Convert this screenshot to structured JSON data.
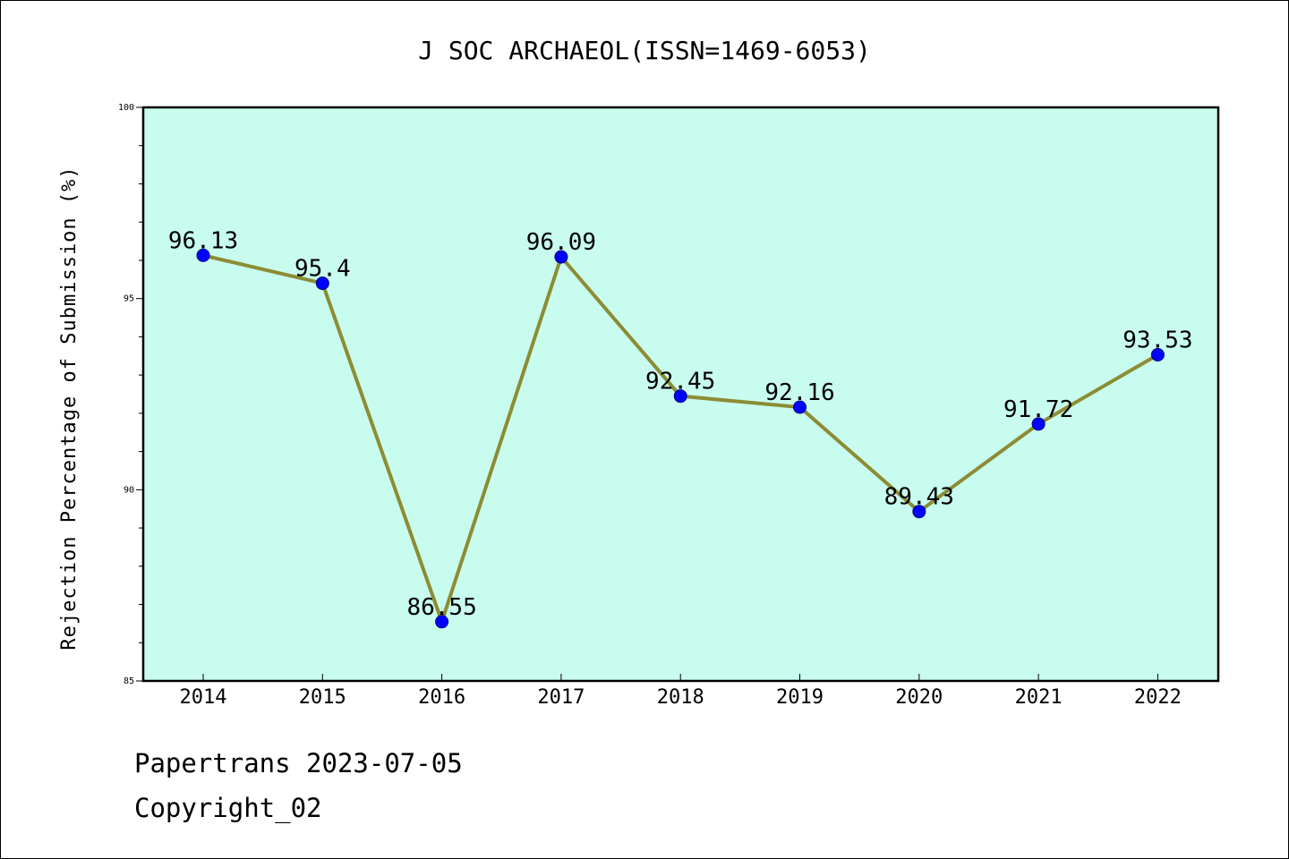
{
  "chart_data": {
    "type": "line",
    "title": "J SOC ARCHAEOL(ISSN=1469-6053)",
    "xlabel": "",
    "ylabel": "Rejection Percentage of Submission (%)",
    "categories": [
      "2014",
      "2015",
      "2016",
      "2017",
      "2018",
      "2019",
      "2020",
      "2021",
      "2022"
    ],
    "series": [
      {
        "values": [
          96.13,
          95.4,
          86.55,
          96.09,
          92.45,
          92.16,
          89.43,
          91.72,
          93.53
        ],
        "labels": [
          "96.13",
          "95.4",
          "86.55",
          "96.09",
          "92.45",
          "92.16",
          "89.43",
          "91.72",
          "93.53"
        ],
        "line_color": "#8c8c33",
        "marker_color": "#0000ff"
      }
    ],
    "ylim": [
      85,
      100
    ],
    "yticks": [
      85,
      90,
      95,
      100
    ],
    "grid": false,
    "plot_background": "#c8fcee"
  },
  "footer": {
    "line1": "Papertrans 2023-07-05",
    "line2": "Copyright_02"
  }
}
